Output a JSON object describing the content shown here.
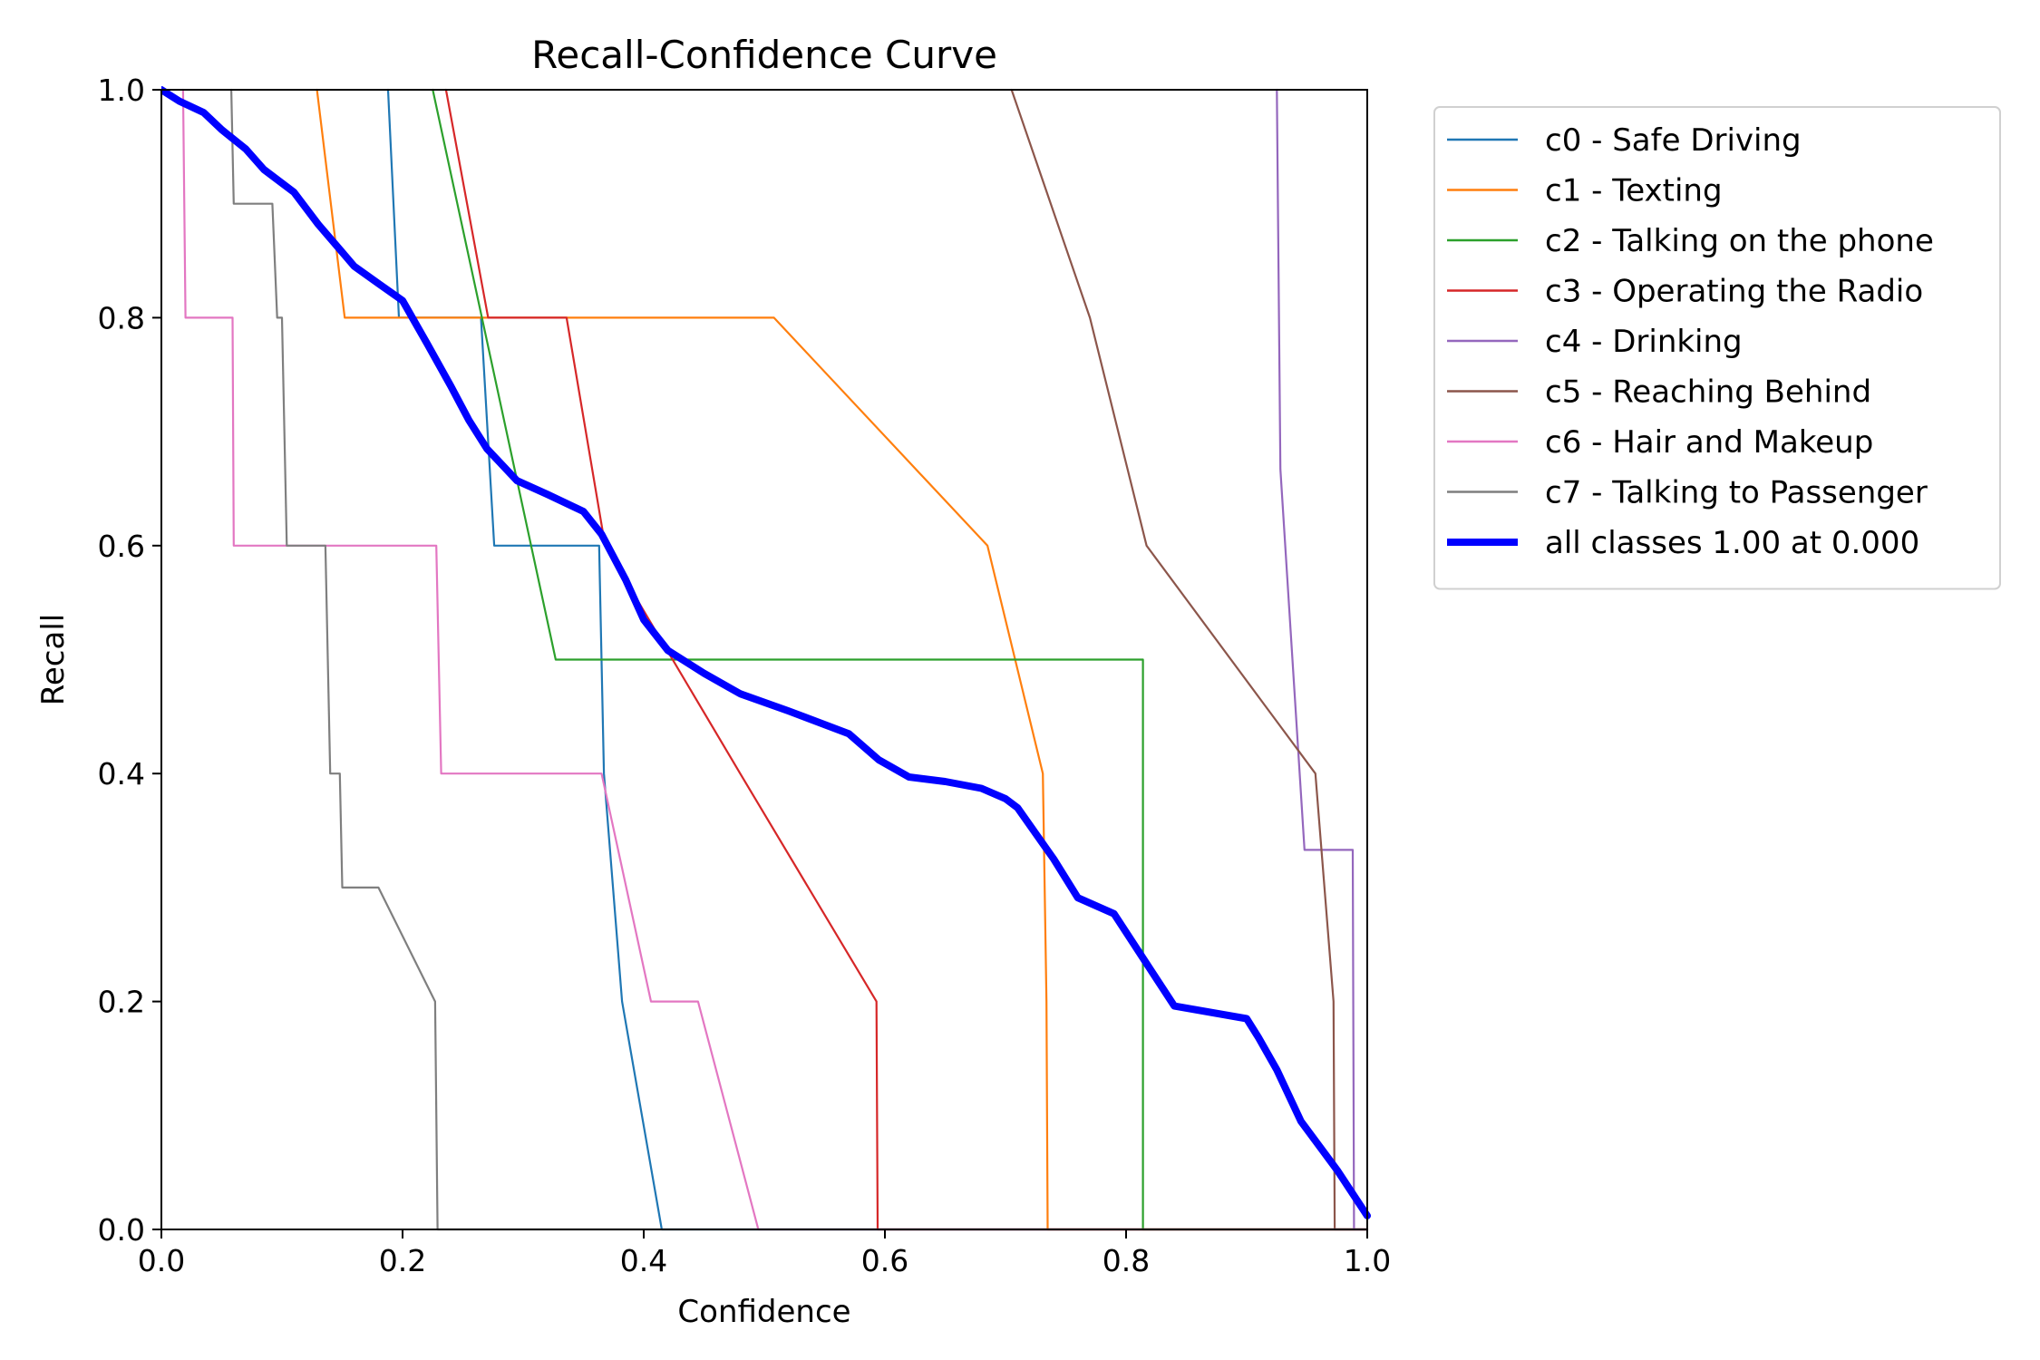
{
  "chart_data": {
    "type": "line",
    "title": "Recall-Confidence Curve",
    "xlabel": "Confidence",
    "ylabel": "Recall",
    "xlim": [
      0,
      1
    ],
    "ylim": [
      0,
      1
    ],
    "xticks": [
      "0.0",
      "0.2",
      "0.4",
      "0.6",
      "0.8",
      "1.0"
    ],
    "yticks": [
      "0.0",
      "0.2",
      "0.4",
      "0.6",
      "0.8",
      "1.0"
    ],
    "grid": false,
    "legend_position": "outside-top-right",
    "series": [
      {
        "name": "c0 - Safe Driving",
        "color": "#1f77b4",
        "width": "thin",
        "points": [
          [
            0.188,
            1.0
          ],
          [
            0.197,
            0.8
          ],
          [
            0.265,
            0.8
          ],
          [
            0.276,
            0.6
          ],
          [
            0.363,
            0.6
          ],
          [
            0.367,
            0.4
          ],
          [
            0.382,
            0.2
          ],
          [
            0.415,
            0.0
          ],
          [
            1.0,
            0.0
          ]
        ]
      },
      {
        "name": "c1 - Texting",
        "color": "#ff7f0e",
        "width": "thin",
        "points": [
          [
            0.129,
            1.0
          ],
          [
            0.152,
            0.8
          ],
          [
            0.508,
            0.8
          ],
          [
            0.685,
            0.6
          ],
          [
            0.731,
            0.4
          ],
          [
            0.734,
            0.2
          ],
          [
            0.735,
            0.0
          ],
          [
            1.0,
            0.0
          ]
        ]
      },
      {
        "name": "c2 - Talking on the phone",
        "color": "#2ca02c",
        "width": "thin",
        "points": [
          [
            0.225,
            1.0
          ],
          [
            0.327,
            0.5
          ],
          [
            0.814,
            0.5
          ],
          [
            0.814,
            0.0
          ],
          [
            1.0,
            0.0
          ]
        ]
      },
      {
        "name": "c3 - Operating the Radio",
        "color": "#d62728",
        "width": "thin",
        "points": [
          [
            0.236,
            1.0
          ],
          [
            0.271,
            0.8
          ],
          [
            0.336,
            0.8
          ],
          [
            0.368,
            0.6
          ],
          [
            0.48,
            0.4
          ],
          [
            0.593,
            0.2
          ],
          [
            0.594,
            0.0
          ],
          [
            1.0,
            0.0
          ]
        ]
      },
      {
        "name": "c4 - Drinking",
        "color": "#9467bd",
        "width": "thin",
        "points": [
          [
            0.925,
            1.0
          ],
          [
            0.928,
            0.667
          ],
          [
            0.948,
            0.333
          ],
          [
            0.988,
            0.333
          ],
          [
            0.989,
            0.0
          ],
          [
            1.0,
            0.0
          ]
        ]
      },
      {
        "name": "c5 - Reaching Behind",
        "color": "#8c564b",
        "width": "thin",
        "points": [
          [
            0.705,
            1.0
          ],
          [
            0.77,
            0.8
          ],
          [
            0.817,
            0.6
          ],
          [
            0.957,
            0.4
          ],
          [
            0.972,
            0.2
          ],
          [
            0.973,
            0.0
          ],
          [
            1.0,
            0.0
          ]
        ]
      },
      {
        "name": "c6 - Hair and Makeup",
        "color": "#e377c2",
        "width": "thin",
        "points": [
          [
            0.018,
            1.0
          ],
          [
            0.02,
            0.8
          ],
          [
            0.059,
            0.8
          ],
          [
            0.06,
            0.6
          ],
          [
            0.228,
            0.6
          ],
          [
            0.232,
            0.4
          ],
          [
            0.365,
            0.4
          ],
          [
            0.406,
            0.2
          ],
          [
            0.445,
            0.2
          ],
          [
            0.495,
            0.0
          ],
          [
            1.0,
            0.0
          ]
        ]
      },
      {
        "name": "c7 - Talking to Passenger",
        "color": "#7f7f7f",
        "width": "thin",
        "points": [
          [
            0.058,
            1.0
          ],
          [
            0.06,
            0.9
          ],
          [
            0.092,
            0.9
          ],
          [
            0.096,
            0.8
          ],
          [
            0.1,
            0.8
          ],
          [
            0.104,
            0.6
          ],
          [
            0.136,
            0.6
          ],
          [
            0.14,
            0.4
          ],
          [
            0.148,
            0.4
          ],
          [
            0.15,
            0.3
          ],
          [
            0.18,
            0.3
          ],
          [
            0.227,
            0.2
          ],
          [
            0.229,
            0.0
          ],
          [
            1.0,
            0.0
          ]
        ]
      },
      {
        "name": "all classes 1.00 at 0.000",
        "color": "#0000ff",
        "width": "thick",
        "points": [
          [
            0.0,
            1.0
          ],
          [
            0.015,
            0.99
          ],
          [
            0.035,
            0.98
          ],
          [
            0.05,
            0.965
          ],
          [
            0.07,
            0.948
          ],
          [
            0.085,
            0.93
          ],
          [
            0.11,
            0.91
          ],
          [
            0.13,
            0.882
          ],
          [
            0.16,
            0.845
          ],
          [
            0.18,
            0.83
          ],
          [
            0.2,
            0.815
          ],
          [
            0.22,
            0.778
          ],
          [
            0.24,
            0.74
          ],
          [
            0.255,
            0.71
          ],
          [
            0.27,
            0.685
          ],
          [
            0.295,
            0.657
          ],
          [
            0.32,
            0.645
          ],
          [
            0.35,
            0.63
          ],
          [
            0.365,
            0.61
          ],
          [
            0.385,
            0.57
          ],
          [
            0.4,
            0.535
          ],
          [
            0.42,
            0.508
          ],
          [
            0.45,
            0.488
          ],
          [
            0.48,
            0.47
          ],
          [
            0.52,
            0.455
          ],
          [
            0.57,
            0.435
          ],
          [
            0.595,
            0.412
          ],
          [
            0.62,
            0.397
          ],
          [
            0.65,
            0.393
          ],
          [
            0.68,
            0.387
          ],
          [
            0.7,
            0.378
          ],
          [
            0.71,
            0.37
          ],
          [
            0.74,
            0.325
          ],
          [
            0.76,
            0.291
          ],
          [
            0.79,
            0.277
          ],
          [
            0.84,
            0.196
          ],
          [
            0.9,
            0.185
          ],
          [
            0.91,
            0.168
          ],
          [
            0.925,
            0.14
          ],
          [
            0.945,
            0.095
          ],
          [
            0.975,
            0.052
          ],
          [
            1.0,
            0.012
          ]
        ]
      }
    ]
  }
}
